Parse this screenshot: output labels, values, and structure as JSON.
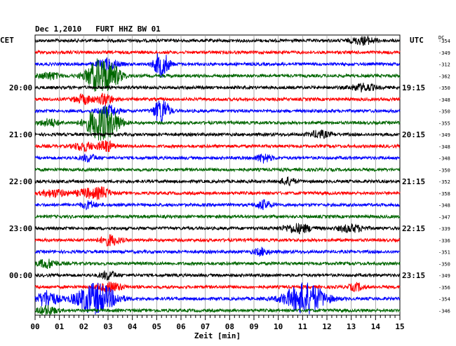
{
  "header": {
    "title": "Dec 1,2010   FURT HHZ BW 01",
    "left_zone": "CET",
    "right_zone": "UTC",
    "dc_label": "DC"
  },
  "chart_data": {
    "type": "line",
    "title": "Dec 1,2010   FURT HHZ BW 01",
    "xlabel": "Zeit [min]",
    "x_ticks": [
      "00",
      "01",
      "02",
      "03",
      "04",
      "05",
      "06",
      "07",
      "08",
      "09",
      "10",
      "11",
      "12",
      "13",
      "14",
      "15"
    ],
    "xlim": [
      0,
      15
    ],
    "grid": true,
    "trace_colors": [
      "#000000",
      "#ff0000",
      "#0000ff",
      "#006600"
    ],
    "left_time_labels": [
      {
        "trace": 4,
        "label": "20:00"
      },
      {
        "trace": 8,
        "label": "21:00"
      },
      {
        "trace": 12,
        "label": "22:00"
      },
      {
        "trace": 16,
        "label": "23:00"
      },
      {
        "trace": 20,
        "label": "00:00"
      }
    ],
    "right_time_labels": [
      {
        "trace": 4,
        "label": "19:15"
      },
      {
        "trace": 8,
        "label": "20:15"
      },
      {
        "trace": 12,
        "label": "21:15"
      },
      {
        "trace": 16,
        "label": "22:15"
      },
      {
        "trace": 20,
        "label": "23:15"
      }
    ],
    "dc_offsets": [
      "-354",
      "-349",
      "-312",
      "-362",
      "-350",
      "-348",
      "-350",
      "-355",
      "-349",
      "-348",
      "-348",
      "-350",
      "-352",
      "-358",
      "-348",
      "-347",
      "-339",
      "-336",
      "-351",
      "-350",
      "-349",
      "-356",
      "-354",
      "-346"
    ]
  }
}
